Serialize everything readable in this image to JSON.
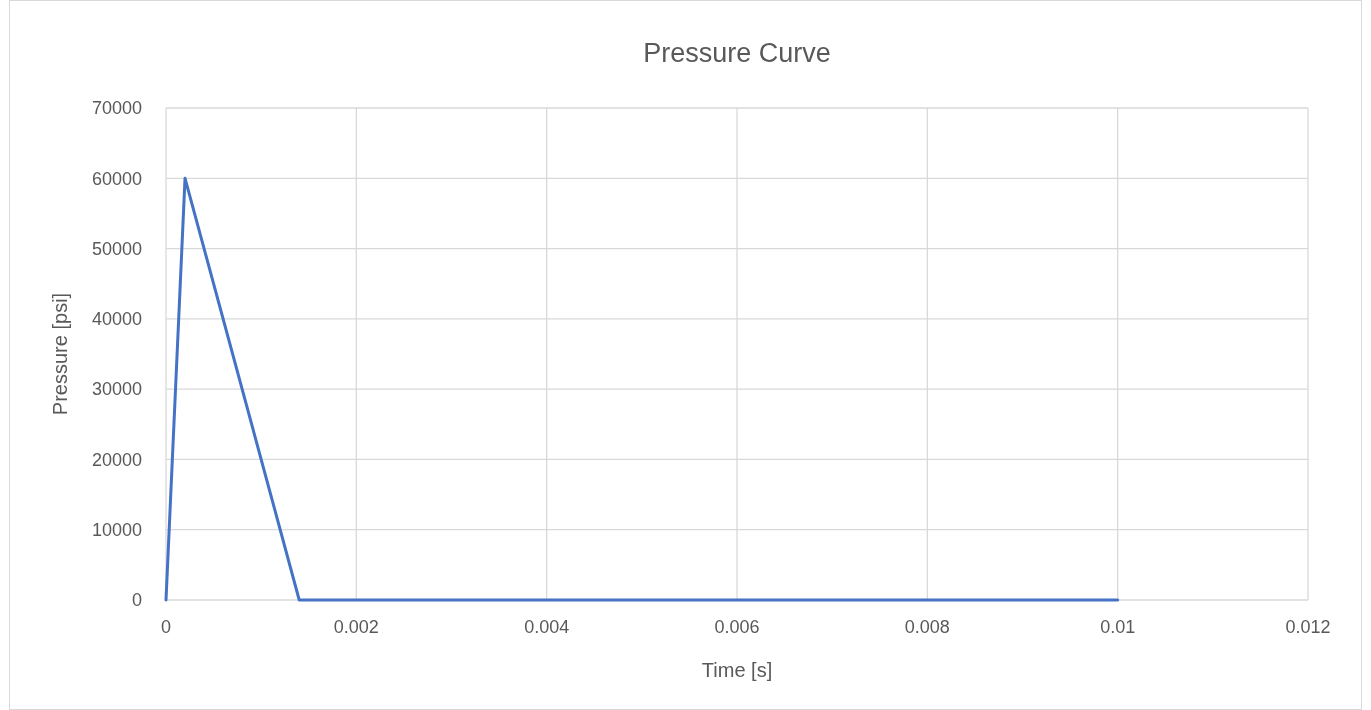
{
  "chart_data": {
    "type": "line",
    "title": "Pressure Curve",
    "xlabel": "Time [s]",
    "ylabel": "Pressure [psi]",
    "series": [
      {
        "color": "#4472c4",
        "x": [
          0,
          0.0002,
          0.0014,
          0.01
        ],
        "values": [
          0,
          60000,
          0,
          0
        ]
      }
    ],
    "xlim": [
      0,
      0.012
    ],
    "xticks": [
      0,
      0.002,
      0.004,
      0.006,
      0.008,
      0.01,
      0.012
    ],
    "ylim": [
      0,
      70000
    ],
    "yticks": [
      0,
      10000,
      20000,
      30000,
      40000,
      50000,
      60000,
      70000
    ],
    "grid": true,
    "marker": "none",
    "line_style": "solid"
  }
}
